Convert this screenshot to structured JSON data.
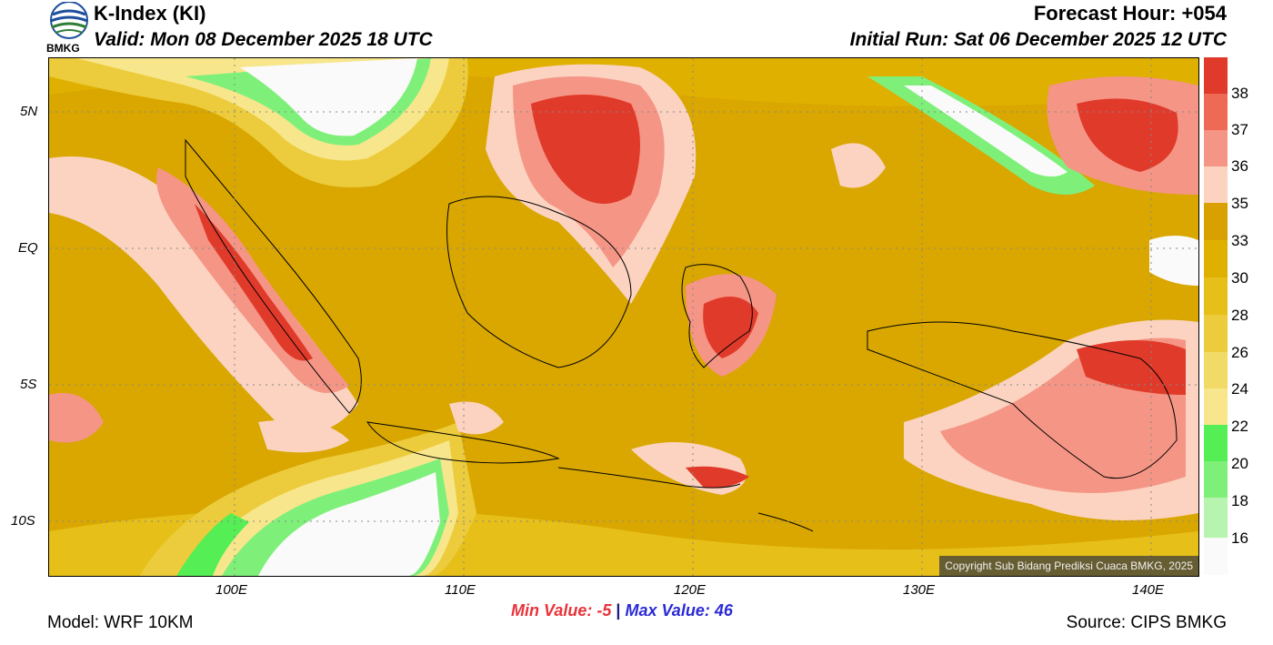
{
  "header": {
    "logo_text": "BMKG",
    "title": "K-Index (KI)",
    "forecast_hour": "Forecast Hour: +054",
    "valid": "Valid: Mon 08 December 2025 18 UTC",
    "initial_run": "Initial Run: Sat 06 December 2025 12 UTC"
  },
  "map": {
    "lat_ticks": [
      "5N",
      "EQ",
      "5S",
      "10S"
    ],
    "lon_ticks": [
      "100E",
      "110E",
      "120E",
      "130E",
      "140E"
    ],
    "copyright": "Copyright Sub Bidang Prediksi Cuaca BMKG, 2025"
  },
  "colorbar": {
    "labels": [
      "38",
      "37",
      "36",
      "35",
      "33",
      "30",
      "28",
      "26",
      "24",
      "22",
      "20",
      "18",
      "16"
    ],
    "colors": [
      "#e03a2a",
      "#ee6a55",
      "#f59585",
      "#fbd3c0",
      "#d8a000",
      "#dfb000",
      "#e6bf18",
      "#eccc3c",
      "#f2da66",
      "#f8e68c",
      "#55ee55",
      "#7ef07a",
      "#b6f4b0",
      "#fafafa"
    ]
  },
  "stats": {
    "min_label": "Min Value:",
    "min_value": "-5",
    "separator": "|",
    "max_label": "Max Value:",
    "max_value": "46"
  },
  "footer": {
    "model": "Model: WRF 10KM",
    "source": "Source: CIPS BMKG"
  }
}
